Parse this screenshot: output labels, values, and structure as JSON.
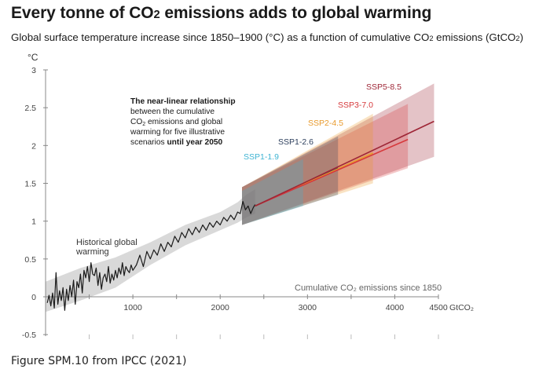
{
  "title": {
    "pre": "Every tonne of CO",
    "sub": "2",
    "post": " emissions adds to global warming"
  },
  "subtitle": {
    "pre": "Global surface temperature increase since 1850–1900 (°C) as a function of cumulative CO",
    "sub": "2",
    "post": " emissions (GtCO",
    "sub2": "2",
    "post2": ")"
  },
  "caption": "Figure SPM.10 from IPCC (2021)",
  "colors": {
    "historical": "#1a1a1a",
    "historical_band": "#cfcfcf",
    "ssp1_19": "#3fb4d3",
    "ssp1_26": "#2c3e5c",
    "ssp2_45": "#e89a2c",
    "ssp3_70": "#d6393c",
    "ssp5_85": "#9e2636",
    "axis": "#888888",
    "tick_label": "#444444"
  },
  "chart_data": {
    "type": "line",
    "xlabel": "Cumulative CO₂ emissions since 1850",
    "ylabel": "°C",
    "xlim": [
      0,
      4500
    ],
    "ylim": [
      -0.5,
      3
    ],
    "xticks": [
      1000,
      2000,
      3000,
      4000,
      4500
    ],
    "xtick_unit": "GtCO₂",
    "yticks": [
      -0.5,
      0,
      0.5,
      1,
      1.5,
      2,
      2.5,
      3
    ],
    "ytick_labels": [
      "-0.5",
      "0",
      "0.5",
      "1",
      "1.5",
      "2",
      "2.5",
      "3"
    ],
    "historical_label": "Historical global warming",
    "historical": {
      "x": [
        20,
        40,
        60,
        80,
        100,
        120,
        140,
        160,
        180,
        200,
        220,
        240,
        260,
        280,
        300,
        320,
        340,
        360,
        380,
        400,
        420,
        440,
        460,
        480,
        500,
        520,
        540,
        560,
        580,
        600,
        620,
        640,
        660,
        680,
        700,
        720,
        740,
        760,
        780,
        800,
        820,
        840,
        860,
        880,
        900,
        920,
        940,
        960,
        980,
        1000,
        1040,
        1080,
        1120,
        1160,
        1200,
        1240,
        1280,
        1320,
        1360,
        1400,
        1440,
        1480,
        1520,
        1560,
        1600,
        1640,
        1680,
        1720,
        1760,
        1800,
        1840,
        1880,
        1920,
        1960,
        2000,
        2040,
        2080,
        2120,
        2160,
        2200,
        2230,
        2260,
        2290,
        2320,
        2350,
        2380,
        2400
      ],
      "y": [
        -0.08,
        0.02,
        -0.12,
        0.05,
        -0.15,
        0.32,
        -0.1,
        0.08,
        -0.05,
        0.12,
        -0.18,
        0.1,
        -0.05,
        0.15,
        0.0,
        0.22,
        -0.1,
        0.2,
        0.12,
        0.3,
        0.05,
        0.35,
        0.25,
        0.4,
        0.2,
        0.45,
        0.3,
        0.28,
        0.38,
        0.15,
        0.32,
        0.1,
        0.25,
        0.3,
        0.2,
        0.4,
        0.18,
        0.3,
        0.22,
        0.35,
        0.25,
        0.38,
        0.3,
        0.45,
        0.28,
        0.4,
        0.35,
        0.32,
        0.42,
        0.35,
        0.42,
        0.55,
        0.4,
        0.6,
        0.5,
        0.62,
        0.55,
        0.7,
        0.6,
        0.72,
        0.66,
        0.8,
        0.72,
        0.85,
        0.78,
        0.9,
        0.82,
        0.92,
        0.85,
        0.95,
        0.88,
        0.98,
        0.92,
        1.0,
        0.95,
        1.05,
        1.0,
        1.08,
        1.02,
        1.12,
        1.1,
        1.26,
        1.15,
        1.2,
        1.1,
        1.18,
        1.22
      ]
    },
    "historical_band": {
      "x": [
        0,
        400,
        800,
        1200,
        1600,
        2000,
        2200,
        2300,
        2400
      ],
      "lower": [
        -0.2,
        -0.05,
        0.12,
        0.42,
        0.68,
        0.88,
        0.98,
        1.05,
        1.1
      ],
      "upper": [
        0.2,
        0.38,
        0.52,
        0.72,
        0.95,
        1.12,
        1.25,
        1.35,
        1.42
      ]
    },
    "series": [
      {
        "name": "SSP1-1.9",
        "color_key": "ssp1_19",
        "x": [
          2400,
          2900
        ],
        "y": [
          1.2,
          1.45
        ],
        "band_x": [
          2250,
          2950
        ],
        "band_lower": [
          0.95,
          1.2
        ],
        "band_upper": [
          1.4,
          1.82
        ]
      },
      {
        "name": "SSP1-2.6",
        "color_key": "ssp1_26",
        "x": [
          2400,
          3350
        ],
        "y": [
          1.2,
          1.7
        ],
        "band_x": [
          2250,
          3350
        ],
        "band_lower": [
          0.95,
          1.35
        ],
        "band_upper": [
          1.45,
          2.12
        ]
      },
      {
        "name": "SSP2-4.5",
        "color_key": "ssp2_45",
        "x": [
          2400,
          3750
        ],
        "y": [
          1.2,
          1.9
        ],
        "band_x": [
          2250,
          3750
        ],
        "band_lower": [
          0.95,
          1.5
        ],
        "band_upper": [
          1.45,
          2.42
        ]
      },
      {
        "name": "SSP3-7.0",
        "color_key": "ssp3_70",
        "x": [
          2400,
          4150
        ],
        "y": [
          1.2,
          2.08
        ],
        "band_x": [
          2250,
          4150
        ],
        "band_lower": [
          0.95,
          1.7
        ],
        "band_upper": [
          1.45,
          2.55
        ]
      },
      {
        "name": "SSP5-8.5",
        "color_key": "ssp5_85",
        "x": [
          2400,
          4450
        ],
        "y": [
          1.2,
          2.32
        ],
        "band_x": [
          2250,
          4450
        ],
        "band_lower": [
          0.95,
          1.85
        ],
        "band_upper": [
          1.45,
          2.82
        ]
      }
    ],
    "annotation": {
      "line1_bold": "The near-linear relationship",
      "line2": "between the cumulative",
      "line3_pre": "CO",
      "line3_sub": "2",
      "line3_post": " emissions and global",
      "line4": "warming for five illustrative",
      "line5_pre": "scenarios ",
      "line5_bold": "until year 2050"
    }
  }
}
